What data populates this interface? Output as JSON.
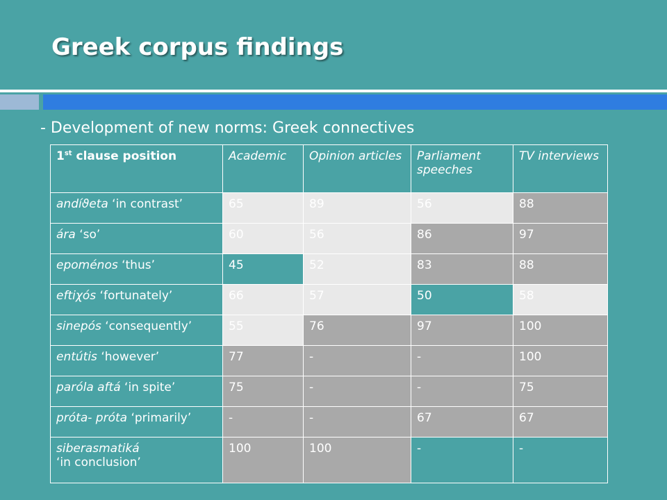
{
  "slide": {
    "title": "Greek corpus findings",
    "subtitle": "- Development of new norms: Greek connectives"
  },
  "table": {
    "header": {
      "first_main": "1",
      "first_sup": "st",
      "first_rest": " clause position",
      "columns": [
        "Academic",
        "Opinion articles",
        "Parliament speeches",
        "TV interviews"
      ]
    },
    "rows": [
      {
        "term": "andíϑeta",
        "gloss": " ‘in contrast’",
        "values": [
          "65",
          "89",
          "56",
          "88"
        ],
        "shades": [
          "light",
          "light",
          "light",
          "gray"
        ]
      },
      {
        "term": "ára",
        "gloss": " ‘so’",
        "values": [
          "60",
          "56",
          "86",
          "97"
        ],
        "shades": [
          "light",
          "light",
          "gray",
          "gray"
        ]
      },
      {
        "term": "epoménos",
        "gloss": " ‘thus’",
        "values": [
          "45",
          "52",
          "83",
          "88"
        ],
        "shades": [
          "teal",
          "light",
          "gray",
          "gray"
        ]
      },
      {
        "term": "eftiχós",
        "gloss": " ‘fortunately’",
        "values": [
          "66",
          "57",
          "50",
          "58"
        ],
        "shades": [
          "light",
          "light",
          "teal",
          "light"
        ]
      },
      {
        "term": "sinepós",
        "gloss": " ‘consequently’",
        "values": [
          "55",
          "76",
          "97",
          "100"
        ],
        "shades": [
          "light",
          "gray",
          "gray",
          "gray"
        ]
      },
      {
        "term": "entútis",
        "gloss": " ‘however’",
        "values": [
          "77",
          "-",
          "-",
          "100"
        ],
        "shades": [
          "gray",
          "gray",
          "gray",
          "gray"
        ]
      },
      {
        "term": "paróla aftá",
        "gloss": "  ‘in spite’",
        "values": [
          "75",
          "-",
          "-",
          "75"
        ],
        "shades": [
          "gray",
          "gray",
          "gray",
          "gray"
        ]
      },
      {
        "term": "próta- próta",
        "gloss": " ‘primarily’",
        "values": [
          "-",
          "-",
          "67",
          "67"
        ],
        "shades": [
          "gray",
          "gray",
          "gray",
          "gray"
        ]
      },
      {
        "term": "siberasmatiká",
        "gloss": "‘in conclusion’",
        "values": [
          "100",
          "100",
          "-",
          "-"
        ],
        "shades": [
          "gray",
          "gray",
          "teal",
          "teal"
        ],
        "wrap": true
      }
    ]
  }
}
